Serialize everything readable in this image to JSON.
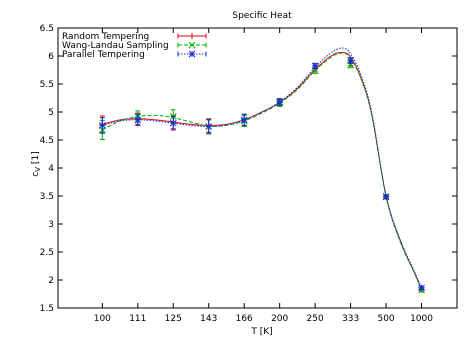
{
  "chart_data": {
    "type": "line",
    "title": "Specific Heat",
    "xlabel": "T [K]",
    "ylabel_main": "c",
    "ylabel_sub": "V",
    "ylabel_unit": "[1]",
    "ylim": [
      1.5,
      6.5
    ],
    "yticks": [
      "1.5",
      "2",
      "2.5",
      "3",
      "3.5",
      "4",
      "4.5",
      "5",
      "5.5",
      "6",
      "6.5"
    ],
    "ytick_values": [
      1.5,
      2,
      2.5,
      3,
      3.5,
      4,
      4.5,
      5,
      5.5,
      6,
      6.5
    ],
    "x_categories": [
      "100",
      "111",
      "125",
      "143",
      "166",
      "200",
      "250",
      "333",
      "500",
      "1000"
    ],
    "x_positions": [
      0,
      1,
      2,
      3,
      4,
      5,
      6,
      7,
      8,
      9
    ],
    "xlim": [
      -1.25,
      10
    ],
    "grid": false,
    "legend_position": "top-left",
    "series": [
      {
        "name": "Random Tempering",
        "color": "#e8001c",
        "marker": "plus",
        "dash": "",
        "points": [
          {
            "x": 0,
            "y": 4.78,
            "err": 0.15
          },
          {
            "x": 1,
            "y": 4.88,
            "err": 0.1
          },
          {
            "x": 2,
            "y": 4.82,
            "err": 0.12
          },
          {
            "x": 3,
            "y": 4.76,
            "err": 0.12
          },
          {
            "x": 4,
            "y": 4.86,
            "err": 0.1
          },
          {
            "x": 5,
            "y": 5.17,
            "err": 0.06
          },
          {
            "x": 6,
            "y": 5.78,
            "err": 0.05
          },
          {
            "x": 7,
            "y": 5.88,
            "err": 0.05
          },
          {
            "x": 8,
            "y": 3.48,
            "err": 0.03
          },
          {
            "x": 9,
            "y": 1.83,
            "err": 0.03
          }
        ],
        "curve": [
          [
            0,
            4.78
          ],
          [
            0.5,
            4.86
          ],
          [
            1,
            4.88
          ],
          [
            1.5,
            4.86
          ],
          [
            2,
            4.82
          ],
          [
            2.5,
            4.78
          ],
          [
            3,
            4.76
          ],
          [
            3.5,
            4.78
          ],
          [
            4,
            4.86
          ],
          [
            4.5,
            5.0
          ],
          [
            5,
            5.17
          ],
          [
            5.5,
            5.42
          ],
          [
            6,
            5.76
          ],
          [
            6.5,
            6.02
          ],
          [
            6.8,
            6.06
          ],
          [
            7,
            5.98
          ],
          [
            7.3,
            5.6
          ],
          [
            7.6,
            4.95
          ],
          [
            8,
            3.5
          ],
          [
            8.4,
            2.7
          ],
          [
            8.8,
            2.13
          ],
          [
            9,
            1.83
          ]
        ]
      },
      {
        "name": "Wang-Landau Sampling",
        "color": "#00b000",
        "marker": "cross",
        "dash": "4,2",
        "points": [
          {
            "x": 0,
            "y": 4.68,
            "err": 0.17
          },
          {
            "x": 1,
            "y": 4.92,
            "err": 0.1
          },
          {
            "x": 2,
            "y": 4.92,
            "err": 0.12
          },
          {
            "x": 3,
            "y": 4.74,
            "err": 0.13
          },
          {
            "x": 4,
            "y": 4.84,
            "err": 0.1
          },
          {
            "x": 5,
            "y": 5.16,
            "err": 0.06
          },
          {
            "x": 6,
            "y": 5.74,
            "err": 0.05
          },
          {
            "x": 7,
            "y": 5.84,
            "err": 0.05
          },
          {
            "x": 8,
            "y": 3.48,
            "err": 0.03
          },
          {
            "x": 9,
            "y": 1.82,
            "err": 0.03
          }
        ],
        "curve": [
          [
            0,
            4.68
          ],
          [
            0.5,
            4.84
          ],
          [
            1,
            4.92
          ],
          [
            1.5,
            4.94
          ],
          [
            2,
            4.9
          ],
          [
            2.5,
            4.82
          ],
          [
            3,
            4.75
          ],
          [
            3.5,
            4.76
          ],
          [
            4,
            4.84
          ],
          [
            4.5,
            4.98
          ],
          [
            5,
            5.16
          ],
          [
            5.5,
            5.4
          ],
          [
            6,
            5.74
          ],
          [
            6.5,
            6.0
          ],
          [
            6.8,
            6.05
          ],
          [
            7,
            5.96
          ],
          [
            7.3,
            5.58
          ],
          [
            7.6,
            4.93
          ],
          [
            8,
            3.48
          ],
          [
            8.4,
            2.68
          ],
          [
            8.8,
            2.12
          ],
          [
            9,
            1.82
          ]
        ]
      },
      {
        "name": "Parallel Tempering",
        "color": "#1030d0",
        "marker": "star",
        "dash": "1.5,1.5",
        "points": [
          {
            "x": 0,
            "y": 4.76,
            "err": 0.14
          },
          {
            "x": 1,
            "y": 4.86,
            "err": 0.1
          },
          {
            "x": 2,
            "y": 4.8,
            "err": 0.12
          },
          {
            "x": 3,
            "y": 4.74,
            "err": 0.12
          },
          {
            "x": 4,
            "y": 4.86,
            "err": 0.1
          },
          {
            "x": 5,
            "y": 5.18,
            "err": 0.06
          },
          {
            "x": 6,
            "y": 5.82,
            "err": 0.05
          },
          {
            "x": 7,
            "y": 5.92,
            "err": 0.05
          },
          {
            "x": 8,
            "y": 3.49,
            "err": 0.03
          },
          {
            "x": 9,
            "y": 1.86,
            "err": 0.03
          }
        ],
        "curve": [
          [
            0,
            4.76
          ],
          [
            0.5,
            4.84
          ],
          [
            1,
            4.86
          ],
          [
            1.5,
            4.84
          ],
          [
            2,
            4.8
          ],
          [
            2.5,
            4.76
          ],
          [
            3,
            4.74
          ],
          [
            3.5,
            4.77
          ],
          [
            4,
            4.86
          ],
          [
            4.5,
            5.0
          ],
          [
            5,
            5.18
          ],
          [
            5.5,
            5.44
          ],
          [
            6,
            5.8
          ],
          [
            6.5,
            6.08
          ],
          [
            6.8,
            6.14
          ],
          [
            7,
            6.04
          ],
          [
            7.3,
            5.65
          ],
          [
            7.6,
            4.98
          ],
          [
            8,
            3.5
          ],
          [
            8.4,
            2.72
          ],
          [
            8.8,
            2.15
          ],
          [
            9,
            1.86
          ]
        ]
      }
    ]
  }
}
